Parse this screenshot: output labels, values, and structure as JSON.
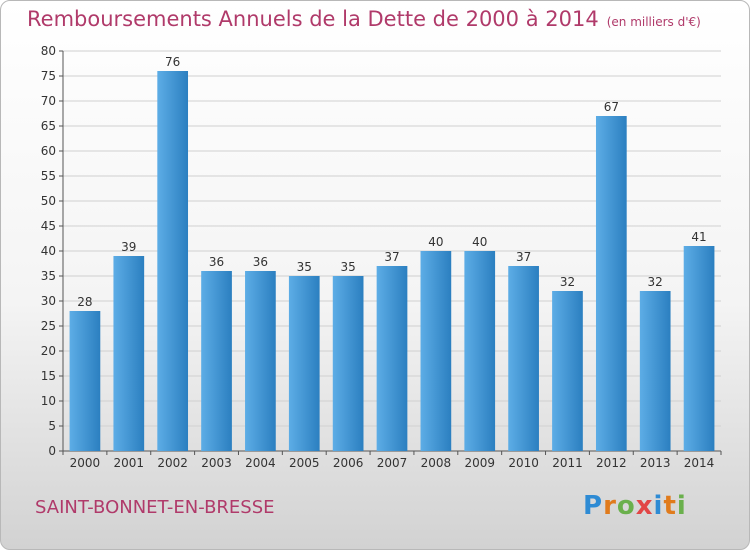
{
  "header": {
    "title": "Remboursements Annuels de la Dette de 2000 à 2014",
    "unit": "(en milliers d'€)"
  },
  "footer": {
    "town": "SAINT-BONNET-EN-BRESSE",
    "logo_text": "Proxiti",
    "logo_colors": [
      "#2e8bd4",
      "#e07b1c",
      "#6ab04c",
      "#e24646",
      "#2e8bd4",
      "#e07b1c",
      "#6ab04c"
    ]
  },
  "colors": {
    "bar_light": "#5dade6",
    "bar_dark": "#2b7fc0",
    "title": "#b03a6a",
    "grid": "#d0d0d0"
  },
  "chart_data": {
    "type": "bar",
    "categories": [
      "2000",
      "2001",
      "2002",
      "2003",
      "2004",
      "2005",
      "2006",
      "2007",
      "2008",
      "2009",
      "2010",
      "2011",
      "2012",
      "2013",
      "2014"
    ],
    "values": [
      28,
      39,
      76,
      36,
      36,
      35,
      35,
      37,
      40,
      40,
      37,
      32,
      67,
      32,
      41
    ],
    "ylim": [
      0,
      80
    ],
    "yticks": [
      0,
      5,
      10,
      15,
      20,
      25,
      30,
      35,
      40,
      45,
      50,
      55,
      60,
      65,
      70,
      75,
      80
    ],
    "grid": true,
    "data_labels": true
  }
}
